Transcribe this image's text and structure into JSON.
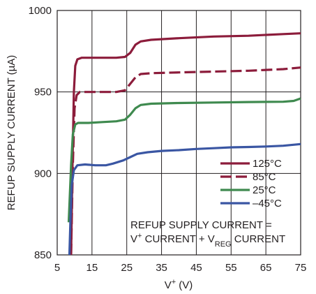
{
  "chart_data": {
    "type": "line",
    "title": "",
    "xlabel_main": "V",
    "xlabel_sup": "+",
    "xlabel_tail": " (V)",
    "ylabel": "REFUP SUPPLY CURRENT (µA)",
    "xlim": [
      5,
      75
    ],
    "ylim": [
      850,
      1000
    ],
    "x_ticks": [
      "5",
      "15",
      "25",
      "35",
      "45",
      "55",
      "65",
      "75"
    ],
    "y_ticks": [
      "850",
      "900",
      "950",
      "1000"
    ],
    "grid": true,
    "legend_position": "lower-right",
    "series": [
      {
        "name": "125°C",
        "color": "#8c1c3b",
        "dash": "solid",
        "points": [
          [
            9.0,
            850
          ],
          [
            9.4,
            905
          ],
          [
            9.8,
            950
          ],
          [
            10.2,
            966
          ],
          [
            10.8,
            970
          ],
          [
            12,
            971
          ],
          [
            14,
            971
          ],
          [
            18,
            971
          ],
          [
            22,
            971
          ],
          [
            24.5,
            971.5
          ],
          [
            26,
            974
          ],
          [
            27.5,
            979
          ],
          [
            29,
            981
          ],
          [
            32,
            982
          ],
          [
            40,
            983
          ],
          [
            50,
            984
          ],
          [
            60,
            984.5
          ],
          [
            70,
            985.5
          ],
          [
            75,
            986
          ]
        ]
      },
      {
        "name": "85°C",
        "color": "#8c1c3b",
        "dash": "dashed",
        "points": [
          [
            9.0,
            850
          ],
          [
            9.5,
            905
          ],
          [
            10.0,
            940
          ],
          [
            10.6,
            948
          ],
          [
            11.5,
            950
          ],
          [
            14,
            950
          ],
          [
            18,
            950
          ],
          [
            22,
            950
          ],
          [
            24.5,
            951
          ],
          [
            26,
            955
          ],
          [
            27.5,
            959
          ],
          [
            29,
            961
          ],
          [
            32,
            961.5
          ],
          [
            40,
            962
          ],
          [
            50,
            962.5
          ],
          [
            60,
            963
          ],
          [
            70,
            964
          ],
          [
            75,
            965
          ]
        ]
      },
      {
        "name": "25°C",
        "color": "#3f8a4f",
        "dash": "solid",
        "points": [
          [
            8.3,
            870
          ],
          [
            9.0,
            905
          ],
          [
            9.5,
            924
          ],
          [
            10.2,
            930
          ],
          [
            11,
            931
          ],
          [
            14,
            931
          ],
          [
            18,
            931.5
          ],
          [
            22,
            932
          ],
          [
            24.5,
            933
          ],
          [
            26,
            936
          ],
          [
            27.5,
            940
          ],
          [
            29,
            942
          ],
          [
            32,
            942.8
          ],
          [
            40,
            943.2
          ],
          [
            50,
            943.5
          ],
          [
            60,
            943.8
          ],
          [
            70,
            944
          ],
          [
            73,
            944.5
          ],
          [
            75,
            946
          ]
        ]
      },
      {
        "name": "–45°C",
        "color": "#3a56a3",
        "dash": "solid",
        "points": [
          [
            8.5,
            850
          ],
          [
            8.8,
            870
          ],
          [
            9.2,
            893
          ],
          [
            9.8,
            902
          ],
          [
            10.8,
            905
          ],
          [
            13,
            905.5
          ],
          [
            16,
            905
          ],
          [
            19,
            905
          ],
          [
            21,
            906
          ],
          [
            24,
            908
          ],
          [
            26,
            910
          ],
          [
            28,
            912
          ],
          [
            31,
            913
          ],
          [
            35,
            913.8
          ],
          [
            40,
            914.3
          ],
          [
            45,
            915
          ],
          [
            50,
            915.5
          ],
          [
            55,
            916
          ],
          [
            60,
            916.2
          ],
          [
            65,
            916.5
          ],
          [
            70,
            917
          ],
          [
            75,
            918
          ]
        ]
      }
    ],
    "note": {
      "line1": "REFUP SUPPLY CURRENT =",
      "line2_a": "V",
      "line2_a_sup": "+",
      "line2_b": " CURRENT + V",
      "line2_b_sub": "REG",
      "line2_c": " CURRENT"
    }
  }
}
